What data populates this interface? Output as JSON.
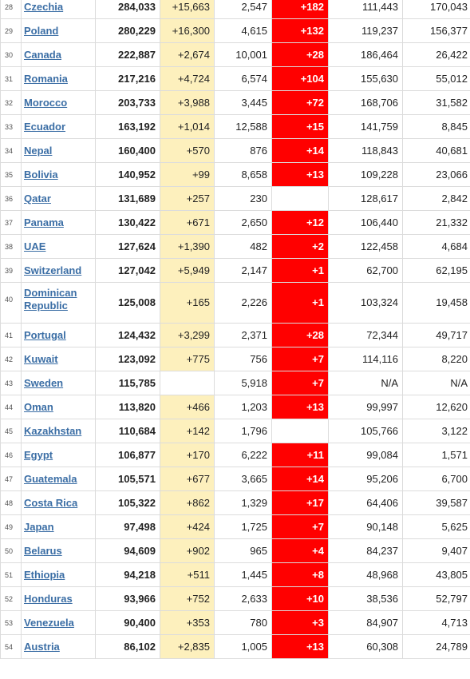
{
  "rows": [
    {
      "rank": "28",
      "country": "Czechia",
      "total": "284,033",
      "new_cases": "+15,663",
      "deaths": "2,547",
      "new_deaths": "+182",
      "recovered": "111,443",
      "active": "170,043"
    },
    {
      "rank": "29",
      "country": "Poland",
      "total": "280,229",
      "new_cases": "+16,300",
      "deaths": "4,615",
      "new_deaths": "+132",
      "recovered": "119,237",
      "active": "156,377"
    },
    {
      "rank": "30",
      "country": "Canada",
      "total": "222,887",
      "new_cases": "+2,674",
      "deaths": "10,001",
      "new_deaths": "+28",
      "recovered": "186,464",
      "active": "26,422"
    },
    {
      "rank": "31",
      "country": "Romania",
      "total": "217,216",
      "new_cases": "+4,724",
      "deaths": "6,574",
      "new_deaths": "+104",
      "recovered": "155,630",
      "active": "55,012"
    },
    {
      "rank": "32",
      "country": "Morocco",
      "total": "203,733",
      "new_cases": "+3,988",
      "deaths": "3,445",
      "new_deaths": "+72",
      "recovered": "168,706",
      "active": "31,582"
    },
    {
      "rank": "33",
      "country": "Ecuador",
      "total": "163,192",
      "new_cases": "+1,014",
      "deaths": "12,588",
      "new_deaths": "+15",
      "recovered": "141,759",
      "active": "8,845"
    },
    {
      "rank": "34",
      "country": "Nepal",
      "total": "160,400",
      "new_cases": "+570",
      "deaths": "876",
      "new_deaths": "+14",
      "recovered": "118,843",
      "active": "40,681"
    },
    {
      "rank": "35",
      "country": "Bolivia",
      "total": "140,952",
      "new_cases": "+99",
      "deaths": "8,658",
      "new_deaths": "+13",
      "recovered": "109,228",
      "active": "23,066"
    },
    {
      "rank": "36",
      "country": "Qatar",
      "total": "131,689",
      "new_cases": "+257",
      "deaths": "230",
      "new_deaths": "",
      "recovered": "128,617",
      "active": "2,842"
    },
    {
      "rank": "37",
      "country": "Panama",
      "total": "130,422",
      "new_cases": "+671",
      "deaths": "2,650",
      "new_deaths": "+12",
      "recovered": "106,440",
      "active": "21,332"
    },
    {
      "rank": "38",
      "country": "UAE",
      "total": "127,624",
      "new_cases": "+1,390",
      "deaths": "482",
      "new_deaths": "+2",
      "recovered": "122,458",
      "active": "4,684"
    },
    {
      "rank": "39",
      "country": "Switzerland",
      "total": "127,042",
      "new_cases": "+5,949",
      "deaths": "2,147",
      "new_deaths": "+1",
      "recovered": "62,700",
      "active": "62,195"
    },
    {
      "rank": "40",
      "country": "Dominican Republic",
      "total": "125,008",
      "new_cases": "+165",
      "deaths": "2,226",
      "new_deaths": "+1",
      "recovered": "103,324",
      "active": "19,458",
      "tall": true
    },
    {
      "rank": "41",
      "country": "Portugal",
      "total": "124,432",
      "new_cases": "+3,299",
      "deaths": "2,371",
      "new_deaths": "+28",
      "recovered": "72,344",
      "active": "49,717"
    },
    {
      "rank": "42",
      "country": "Kuwait",
      "total": "123,092",
      "new_cases": "+775",
      "deaths": "756",
      "new_deaths": "+7",
      "recovered": "114,116",
      "active": "8,220"
    },
    {
      "rank": "43",
      "country": "Sweden",
      "total": "115,785",
      "new_cases": "",
      "deaths": "5,918",
      "new_deaths": "+7",
      "recovered": "N/A",
      "active": "N/A"
    },
    {
      "rank": "44",
      "country": "Oman",
      "total": "113,820",
      "new_cases": "+466",
      "deaths": "1,203",
      "new_deaths": "+13",
      "recovered": "99,997",
      "active": "12,620"
    },
    {
      "rank": "45",
      "country": "Kazakhstan",
      "total": "110,684",
      "new_cases": "+142",
      "deaths": "1,796",
      "new_deaths": "",
      "recovered": "105,766",
      "active": "3,122"
    },
    {
      "rank": "46",
      "country": "Egypt",
      "total": "106,877",
      "new_cases": "+170",
      "deaths": "6,222",
      "new_deaths": "+11",
      "recovered": "99,084",
      "active": "1,571"
    },
    {
      "rank": "47",
      "country": "Guatemala",
      "total": "105,571",
      "new_cases": "+677",
      "deaths": "3,665",
      "new_deaths": "+14",
      "recovered": "95,206",
      "active": "6,700"
    },
    {
      "rank": "48",
      "country": "Costa Rica",
      "total": "105,322",
      "new_cases": "+862",
      "deaths": "1,329",
      "new_deaths": "+17",
      "recovered": "64,406",
      "active": "39,587"
    },
    {
      "rank": "49",
      "country": "Japan",
      "total": "97,498",
      "new_cases": "+424",
      "deaths": "1,725",
      "new_deaths": "+7",
      "recovered": "90,148",
      "active": "5,625"
    },
    {
      "rank": "50",
      "country": "Belarus",
      "total": "94,609",
      "new_cases": "+902",
      "deaths": "965",
      "new_deaths": "+4",
      "recovered": "84,237",
      "active": "9,407"
    },
    {
      "rank": "51",
      "country": "Ethiopia",
      "total": "94,218",
      "new_cases": "+511",
      "deaths": "1,445",
      "new_deaths": "+8",
      "recovered": "48,968",
      "active": "43,805"
    },
    {
      "rank": "52",
      "country": "Honduras",
      "total": "93,966",
      "new_cases": "+752",
      "deaths": "2,633",
      "new_deaths": "+10",
      "recovered": "38,536",
      "active": "52,797"
    },
    {
      "rank": "53",
      "country": "Venezuela",
      "total": "90,400",
      "new_cases": "+353",
      "deaths": "780",
      "new_deaths": "+3",
      "recovered": "84,907",
      "active": "4,713"
    },
    {
      "rank": "54",
      "country": "Austria",
      "total": "86,102",
      "new_cases": "+2,835",
      "deaths": "1,005",
      "new_deaths": "+13",
      "recovered": "60,308",
      "active": "24,789"
    }
  ]
}
